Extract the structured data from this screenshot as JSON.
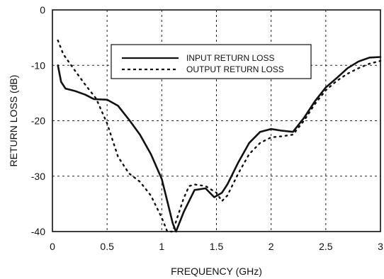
{
  "chart_data": {
    "type": "line",
    "title": "",
    "xlabel": "FREQUENCY (GHz)",
    "ylabel": "RETURN LOSS (dB)",
    "xlim": [
      0,
      3
    ],
    "ylim": [
      -40,
      0
    ],
    "xticks": [
      0,
      0.5,
      1,
      1.5,
      2,
      2.5,
      3
    ],
    "yticks": [
      0,
      -10,
      -20,
      -30,
      -40
    ],
    "xtick_labels": [
      "0",
      "0.5",
      "1",
      "1.5",
      "2",
      "2.5",
      "3"
    ],
    "ytick_labels": [
      "0",
      "-10",
      "-20",
      "-30",
      "-40"
    ],
    "grid": true,
    "legend_position": "top-right",
    "series": [
      {
        "name": "INPUT RETURN LOSS",
        "style": "solid",
        "color": "#111111",
        "x": [
          0.05,
          0.08,
          0.12,
          0.2,
          0.3,
          0.38,
          0.5,
          0.6,
          0.7,
          0.8,
          0.9,
          1.0,
          1.05,
          1.1,
          1.13,
          1.2,
          1.3,
          1.4,
          1.48,
          1.55,
          1.6,
          1.7,
          1.8,
          1.9,
          2.0,
          2.1,
          2.2,
          2.3,
          2.4,
          2.5,
          2.6,
          2.7,
          2.8,
          2.9,
          3.0
        ],
        "y": [
          -10,
          -13,
          -14.2,
          -14.6,
          -15.3,
          -16.1,
          -16.2,
          -17.3,
          -19.8,
          -22.5,
          -26.0,
          -30.5,
          -34.5,
          -38.5,
          -40.5,
          -36.5,
          -32.5,
          -32.2,
          -33.8,
          -33.0,
          -31.5,
          -27.5,
          -24.0,
          -22.0,
          -21.5,
          -21.8,
          -22.0,
          -19.5,
          -16.5,
          -14.0,
          -12.3,
          -10.5,
          -9.3,
          -8.6,
          -8.5
        ]
      },
      {
        "name": "OUTPUT RETURN LOSS",
        "style": "dotted",
        "color": "#111111",
        "x": [
          0.05,
          0.1,
          0.2,
          0.3,
          0.4,
          0.5,
          0.55,
          0.6,
          0.7,
          0.8,
          0.9,
          1.0,
          1.05,
          1.1,
          1.15,
          1.2,
          1.25,
          1.3,
          1.4,
          1.5,
          1.55,
          1.6,
          1.7,
          1.8,
          1.9,
          2.0,
          2.1,
          2.2,
          2.3,
          2.4,
          2.5,
          2.6,
          2.7,
          2.8,
          2.9,
          3.0
        ],
        "y": [
          -5.5,
          -8.0,
          -10.8,
          -13.5,
          -16.0,
          -20.5,
          -23.5,
          -26.5,
          -29.5,
          -31.0,
          -33.5,
          -37.5,
          -40.0,
          -40.0,
          -37.0,
          -34.0,
          -31.8,
          -31.5,
          -31.8,
          -33.0,
          -34.5,
          -33.5,
          -29.5,
          -26.0,
          -24.0,
          -23.0,
          -22.8,
          -22.5,
          -20.0,
          -17.0,
          -14.5,
          -12.8,
          -11.5,
          -10.5,
          -9.7,
          -9.2
        ]
      }
    ]
  }
}
